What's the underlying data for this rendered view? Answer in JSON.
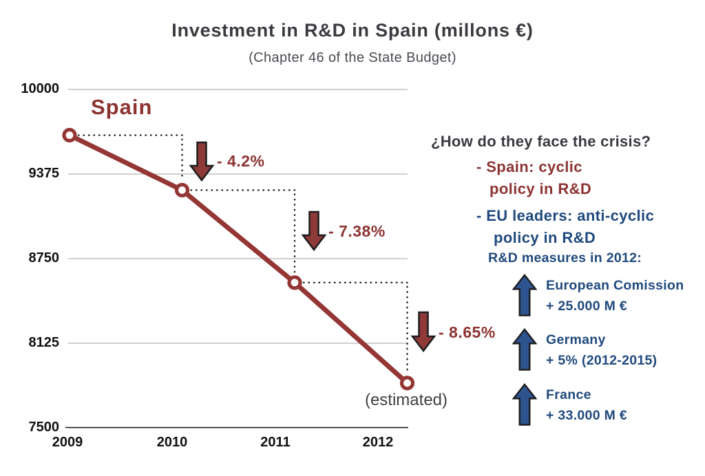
{
  "header": {
    "title": "Investment in R&D in Spain (millons €)",
    "subtitle": "(Chapter 46 of the State Budget)"
  },
  "chart_data": {
    "type": "line",
    "title": "Investment in R&D in Spain (millons €)",
    "categories": [
      "2009",
      "2010",
      "2011",
      "2012"
    ],
    "series": [
      {
        "name": "Spain",
        "values": [
          9662,
          9256,
          8573,
          7831
        ]
      }
    ],
    "annotations": [
      "- 4.2%",
      "- 7.38%",
      "- 8.65%"
    ],
    "series_label": "Spain",
    "estimated_note": "(estimated)",
    "ylim": [
      7500,
      10000
    ],
    "yticks": [
      10000,
      9375,
      8750,
      8125,
      7500
    ],
    "grid": true,
    "legend_position": "inside-top-left",
    "marker": "open-circle"
  },
  "right_panel": {
    "question": "¿How do they face the crisis?",
    "spain_line1": "- Spain: cyclic",
    "spain_line2": "policy in R&D",
    "eu_line1": "- EU leaders: anti-cyclic",
    "eu_line2": "policy in R&D",
    "measures_heading": "R&D measures in 2012:",
    "measures": [
      {
        "name": "European Comission",
        "value": "+ 25.000 M €"
      },
      {
        "name": "Germany",
        "value": "+ 5% (2012-2015)"
      },
      {
        "name": "France",
        "value": "+ 33.000 M €"
      }
    ]
  },
  "colors": {
    "maroon": "#943634",
    "maroon_text": "#8c3331",
    "down_arrow_fill": "#8e3a38",
    "arrow_outline": "#1c1c1e",
    "blue_text": "#1f497d",
    "up_arrow_fill": "#2e5490",
    "gridline": "#b3b3b3",
    "axis": "#1a1a1a",
    "charcoal_text": "#3a3a40"
  }
}
